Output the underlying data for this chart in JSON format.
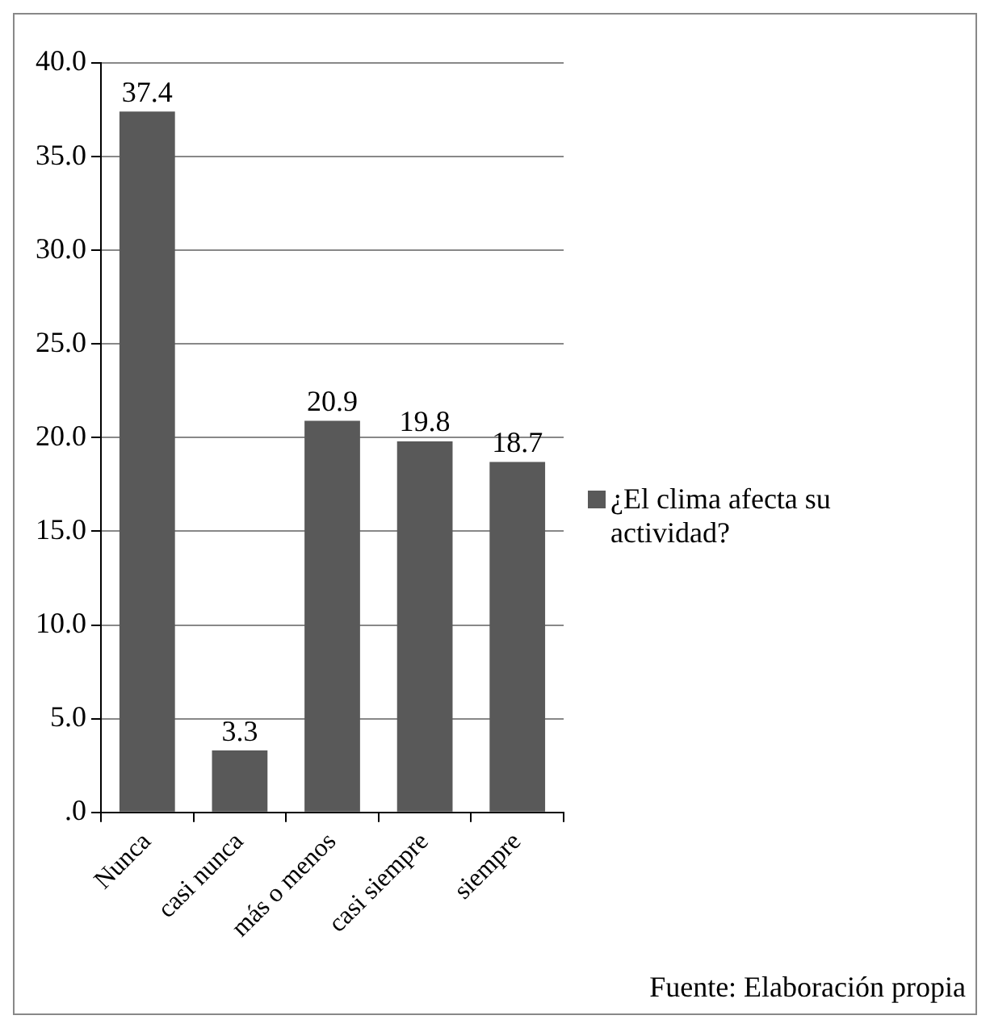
{
  "chart_data": {
    "type": "bar",
    "categories": [
      "Nunca",
      "casi nunca",
      "más o menos",
      "casi siempre",
      "siempre"
    ],
    "series": [
      {
        "name": "¿El clima afecta su actividad?",
        "color": "#595959",
        "values": [
          37.4,
          3.3,
          20.9,
          19.8,
          18.7
        ]
      }
    ],
    "ylim": [
      0,
      40
    ],
    "yticks": [
      {
        "value": 0,
        "label": ".0"
      },
      {
        "value": 5,
        "label": "5.0"
      },
      {
        "value": 10,
        "label": "10.0"
      },
      {
        "value": 15,
        "label": "15.0"
      },
      {
        "value": 20,
        "label": "20.0"
      },
      {
        "value": 25,
        "label": "25.0"
      },
      {
        "value": 30,
        "label": "30.0"
      },
      {
        "value": 35,
        "label": "35.0"
      },
      {
        "value": 40,
        "label": "40.0"
      }
    ],
    "grid": "y",
    "legend": "right",
    "data_labels": true,
    "annotations": [
      "Fuente: Elaboración propia"
    ]
  }
}
